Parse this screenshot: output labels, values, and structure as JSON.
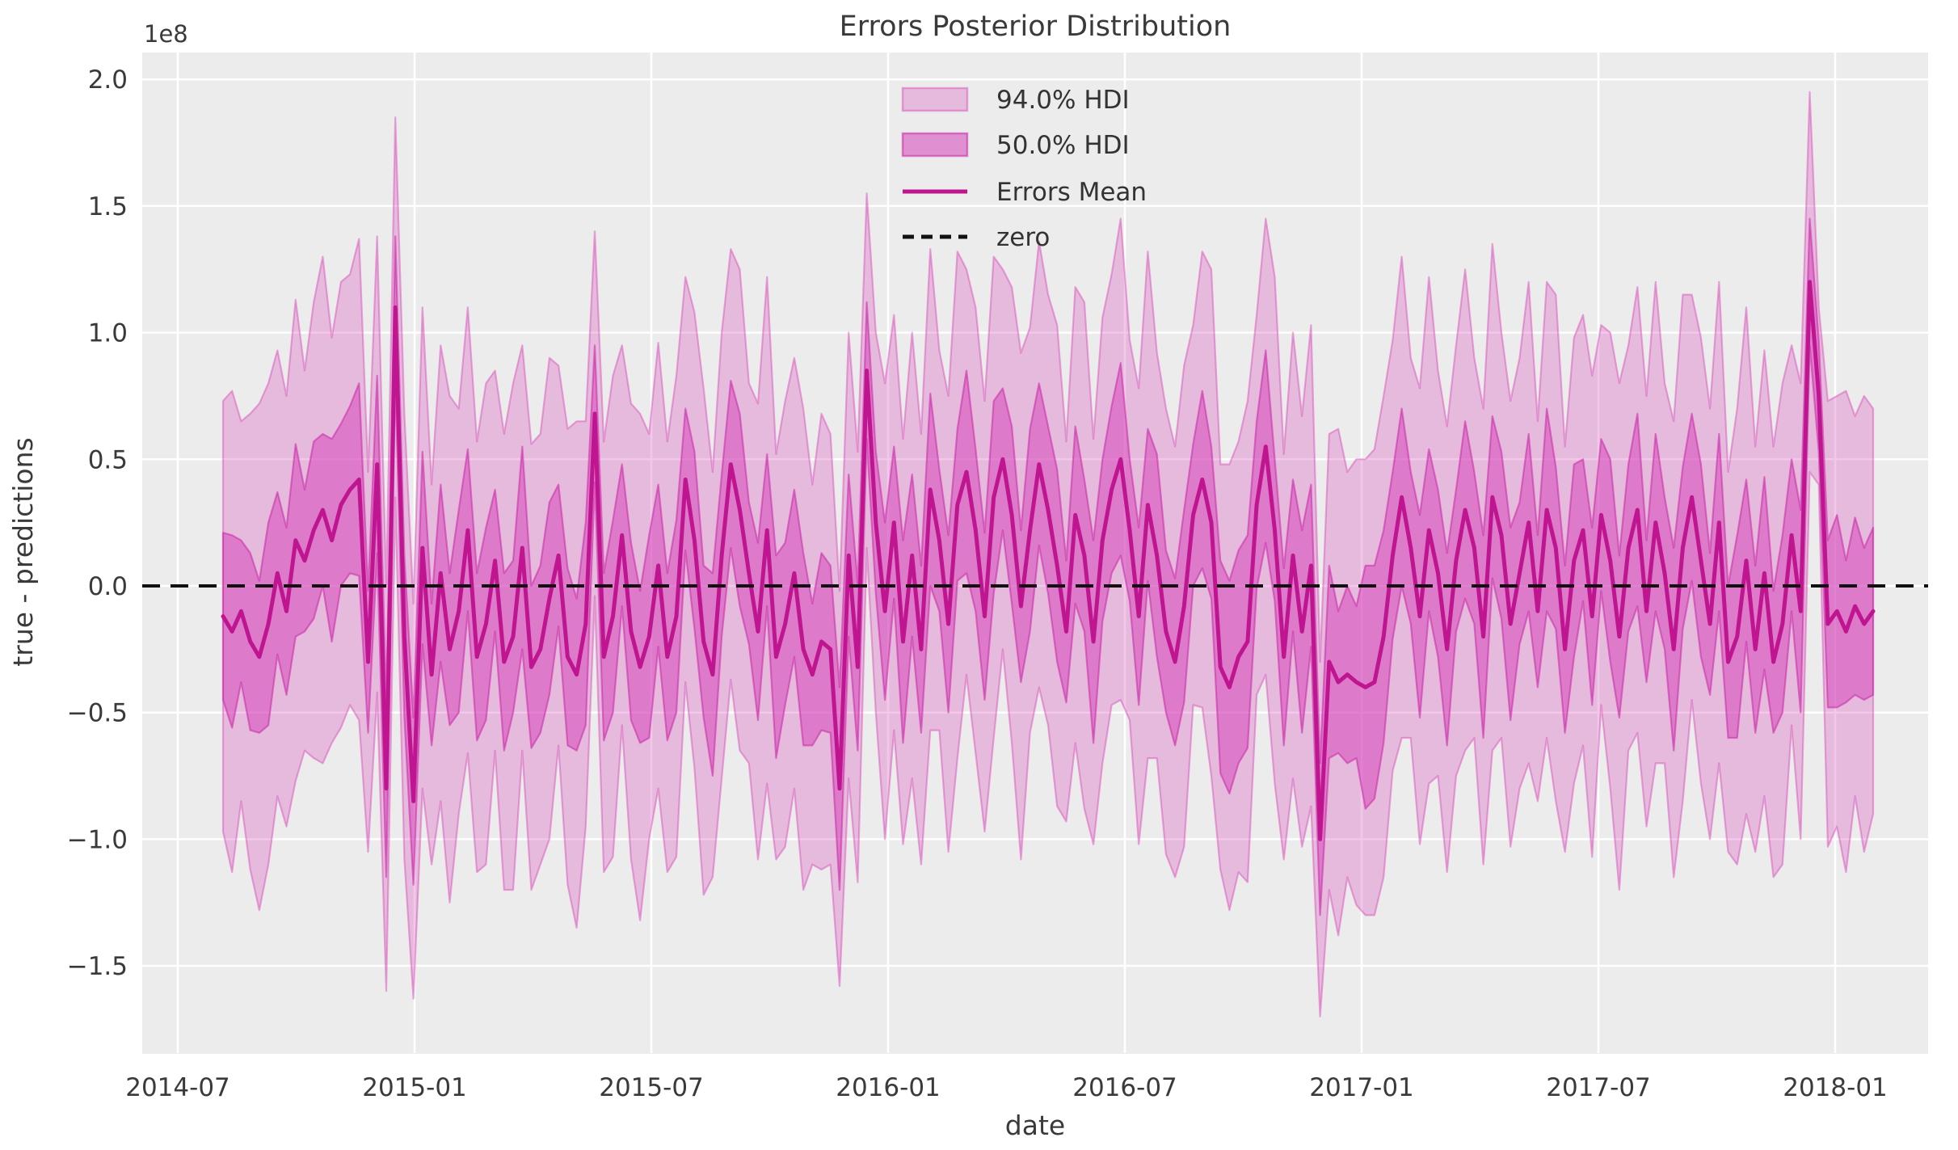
{
  "figure": {
    "title": "Errors Posterior Distribution",
    "xlabel": "date",
    "ylabel": "true - predictions",
    "y_offset_label": "1e8"
  },
  "legend": {
    "items": [
      {
        "label": "94.0% HDI",
        "type": "patch-light"
      },
      {
        "label": "50.0% HDI",
        "type": "patch-dark"
      },
      {
        "label": "Errors Mean",
        "type": "line"
      },
      {
        "label": "zero",
        "type": "dashed-line"
      }
    ]
  },
  "axes": {
    "x_tick_labels": [
      "2014-07",
      "2015-01",
      "2015-07",
      "2016-01",
      "2016-07",
      "2017-01",
      "2017-07",
      "2018-01"
    ],
    "y_tick_labels": [
      "2.0",
      "1.5",
      "1.0",
      "0.5",
      "0.0",
      "−0.5",
      "−1.0",
      "−1.5"
    ],
    "y_tick_values": [
      2.0,
      1.5,
      1.0,
      0.5,
      0.0,
      -0.5,
      -1.0,
      -1.5
    ]
  },
  "chart_data": {
    "type": "line",
    "title": "Errors Posterior Distribution",
    "xlabel": "date",
    "ylabel": "true - predictions",
    "y_unit": "1e8",
    "ylim": [
      -1.85,
      2.11
    ],
    "xlim": [
      "2014-07-01",
      "2018-03-01"
    ],
    "grid": true,
    "legend_position": "upper center",
    "x_start": "2014-08-03",
    "x_freq_days": 7,
    "n_points": 183,
    "series_note": "mean = Errors Mean (units 1e8); 50% HDI = mean +/- hdi50_half; 94% HDI = mean +/- hdi94_half; zero = constant 0 reference line",
    "mean": [
      -0.12,
      -0.18,
      -0.1,
      -0.22,
      -0.28,
      -0.15,
      0.05,
      -0.1,
      0.18,
      0.1,
      0.22,
      0.3,
      0.18,
      0.32,
      0.38,
      0.42,
      -0.3,
      0.48,
      -0.8,
      1.1,
      -0.2,
      -0.85,
      0.15,
      -0.35,
      0.05,
      -0.25,
      -0.1,
      0.22,
      -0.28,
      -0.15,
      0.1,
      -0.3,
      -0.2,
      0.15,
      -0.32,
      -0.25,
      -0.05,
      0.12,
      -0.28,
      -0.35,
      -0.15,
      0.68,
      -0.28,
      -0.12,
      0.2,
      -0.18,
      -0.32,
      -0.2,
      0.08,
      -0.28,
      -0.12,
      0.42,
      0.18,
      -0.22,
      -0.35,
      0.12,
      0.48,
      0.3,
      0.05,
      -0.18,
      0.22,
      -0.28,
      -0.15,
      0.05,
      -0.25,
      -0.35,
      -0.22,
      -0.25,
      -0.8,
      0.12,
      -0.32,
      0.85,
      0.25,
      -0.1,
      0.25,
      -0.22,
      0.12,
      -0.25,
      0.38,
      0.18,
      -0.15,
      0.32,
      0.45,
      0.22,
      -0.12,
      0.35,
      0.5,
      0.28,
      -0.08,
      0.22,
      0.48,
      0.3,
      0.08,
      -0.18,
      0.28,
      0.12,
      -0.22,
      0.18,
      0.38,
      0.5,
      0.22,
      -0.12,
      0.32,
      0.12,
      -0.18,
      -0.3,
      -0.08,
      0.28,
      0.42,
      0.25,
      -0.32,
      -0.4,
      -0.28,
      -0.22,
      0.32,
      0.55,
      0.22,
      -0.28,
      0.12,
      -0.18,
      0.08,
      -1.0,
      -0.3,
      -0.38,
      -0.35,
      -0.38,
      -0.4,
      -0.38,
      -0.2,
      0.12,
      0.35,
      0.15,
      -0.12,
      0.22,
      0.05,
      -0.25,
      0.1,
      0.3,
      0.15,
      -0.2,
      0.35,
      0.2,
      -0.15,
      0.05,
      0.25,
      -0.1,
      0.3,
      0.15,
      -0.25,
      0.1,
      0.22,
      -0.12,
      0.28,
      0.1,
      -0.2,
      0.15,
      0.3,
      -0.1,
      0.25,
      0.05,
      -0.25,
      0.15,
      0.35,
      0.1,
      -0.15,
      0.25,
      -0.3,
      -0.2,
      0.1,
      -0.25,
      0.05,
      -0.3,
      -0.15,
      0.2,
      -0.1,
      1.2,
      0.75,
      -0.15,
      -0.1,
      -0.18,
      -0.08,
      -0.15,
      -0.1
    ],
    "hdi50_half": [
      0.33,
      0.38,
      0.28,
      0.35,
      0.3,
      0.4,
      0.32,
      0.33,
      0.38,
      0.28,
      0.35,
      0.3,
      0.4,
      0.32,
      0.33,
      0.38,
      0.28,
      0.35,
      0.35,
      0.28,
      0.32,
      0.33,
      0.38,
      0.28,
      0.35,
      0.3,
      0.4,
      0.32,
      0.33,
      0.38,
      0.28,
      0.35,
      0.3,
      0.4,
      0.32,
      0.33,
      0.38,
      0.28,
      0.35,
      0.3,
      0.4,
      0.27,
      0.33,
      0.38,
      0.28,
      0.35,
      0.3,
      0.4,
      0.32,
      0.33,
      0.38,
      0.28,
      0.35,
      0.3,
      0.4,
      0.32,
      0.33,
      0.38,
      0.28,
      0.35,
      0.3,
      0.4,
      0.32,
      0.33,
      0.38,
      0.28,
      0.35,
      0.33,
      0.4,
      0.32,
      0.33,
      0.27,
      0.28,
      0.35,
      0.3,
      0.4,
      0.32,
      0.33,
      0.38,
      0.28,
      0.35,
      0.3,
      0.4,
      0.32,
      0.33,
      0.38,
      0.28,
      0.35,
      0.3,
      0.4,
      0.32,
      0.33,
      0.38,
      0.28,
      0.35,
      0.3,
      0.4,
      0.32,
      0.33,
      0.38,
      0.28,
      0.35,
      0.3,
      0.4,
      0.32,
      0.33,
      0.38,
      0.28,
      0.35,
      0.3,
      0.42,
      0.42,
      0.42,
      0.42,
      0.33,
      0.38,
      0.28,
      0.35,
      0.3,
      0.4,
      0.32,
      0.3,
      0.38,
      0.28,
      0.35,
      0.3,
      0.48,
      0.46,
      0.42,
      0.33,
      0.35,
      0.3,
      0.4,
      0.32,
      0.33,
      0.38,
      0.28,
      0.35,
      0.3,
      0.4,
      0.32,
      0.33,
      0.38,
      0.28,
      0.35,
      0.3,
      0.4,
      0.32,
      0.33,
      0.38,
      0.28,
      0.35,
      0.3,
      0.4,
      0.32,
      0.33,
      0.38,
      0.28,
      0.35,
      0.3,
      0.4,
      0.32,
      0.33,
      0.38,
      0.28,
      0.35,
      0.3,
      0.4,
      0.32,
      0.33,
      0.38,
      0.28,
      0.35,
      0.3,
      0.4,
      0.25,
      0.22,
      0.33,
      0.38,
      0.28,
      0.35,
      0.3,
      0.33
    ],
    "hdi94_half": [
      0.85,
      0.95,
      0.75,
      0.9,
      1.0,
      0.95,
      0.88,
      0.85,
      0.95,
      0.75,
      0.9,
      1.0,
      0.8,
      0.88,
      0.85,
      0.95,
      0.75,
      0.9,
      0.8,
      0.75,
      0.88,
      0.78,
      0.95,
      0.75,
      0.9,
      1.0,
      0.8,
      0.88,
      0.85,
      0.95,
      0.75,
      0.9,
      1.0,
      0.8,
      0.88,
      0.85,
      0.95,
      0.75,
      0.9,
      1.0,
      0.8,
      0.72,
      0.85,
      0.95,
      0.75,
      0.9,
      1.0,
      0.8,
      0.88,
      0.85,
      0.95,
      0.8,
      0.9,
      1.0,
      0.8,
      0.88,
      0.85,
      0.95,
      0.75,
      0.9,
      1.0,
      0.8,
      0.88,
      0.85,
      0.95,
      0.75,
      0.9,
      0.85,
      0.78,
      0.88,
      0.85,
      0.7,
      0.75,
      0.9,
      0.82,
      0.8,
      0.88,
      0.85,
      0.95,
      0.75,
      0.9,
      1.0,
      0.8,
      0.88,
      0.85,
      0.95,
      0.75,
      0.9,
      1.0,
      0.8,
      0.88,
      0.85,
      0.95,
      0.75,
      0.9,
      1.0,
      0.8,
      0.88,
      0.85,
      0.95,
      0.75,
      0.9,
      1.0,
      0.8,
      0.88,
      0.85,
      0.95,
      0.75,
      0.9,
      1.0,
      0.8,
      0.88,
      0.85,
      0.95,
      0.75,
      0.9,
      1.0,
      0.8,
      0.88,
      0.85,
      0.95,
      0.7,
      0.9,
      1.0,
      0.8,
      0.88,
      0.9,
      0.92,
      0.95,
      0.85,
      0.95,
      0.75,
      0.9,
      1.0,
      0.8,
      0.88,
      0.85,
      0.95,
      0.75,
      0.9,
      1.0,
      0.8,
      0.88,
      0.85,
      0.95,
      0.75,
      0.9,
      1.0,
      0.8,
      0.88,
      0.85,
      0.95,
      0.75,
      0.9,
      1.0,
      0.8,
      0.88,
      0.85,
      0.95,
      0.75,
      0.9,
      1.0,
      0.8,
      0.88,
      0.85,
      0.95,
      0.75,
      0.9,
      1.0,
      0.8,
      0.88,
      0.85,
      0.95,
      0.75,
      0.9,
      0.75,
      0.35,
      0.88,
      0.85,
      0.95,
      0.75,
      0.9,
      0.8
    ],
    "style": {
      "bg_color": "#ececec",
      "grid_color": "#ffffff",
      "hdi94_fill": "rgba(214,70,185,0.30)",
      "hdi94_edge": "rgba(214,70,185,0.45)",
      "hdi50_fill": "rgba(214,70,185,0.55)",
      "hdi50_edge": "rgba(200,40,165,0.55)",
      "mean_color": "#c01590",
      "zero_color": "#111111",
      "text_color": "#3a3a3a"
    }
  }
}
